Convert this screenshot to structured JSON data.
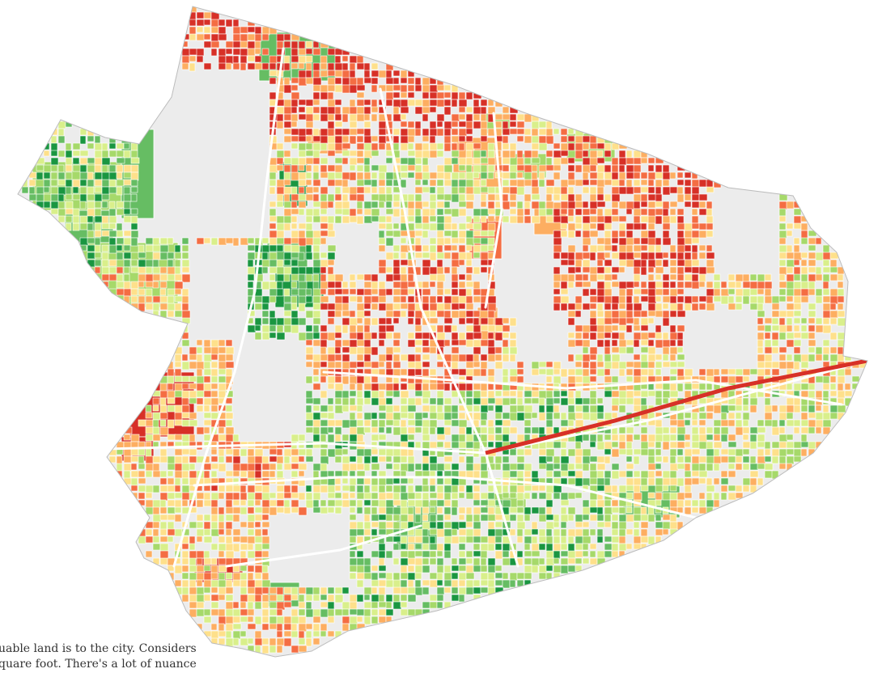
{
  "caption": {
    "lines": [
      "uable land is to the city. Considers",
      "quare foot. There's a lot of nuance"
    ]
  },
  "colors": {
    "background": "#ffffff",
    "land_base": "#ececec",
    "parcel_edge": "#ffffff",
    "boundary": "#bcbcbc",
    "scale": [
      "#1a9641",
      "#66bd63",
      "#a6d96a",
      "#d9ef8b",
      "#fee08b",
      "#fdae61",
      "#f46d43",
      "#d73027"
    ]
  },
  "legend_meaning": {
    "low": "green",
    "high": "red"
  }
}
